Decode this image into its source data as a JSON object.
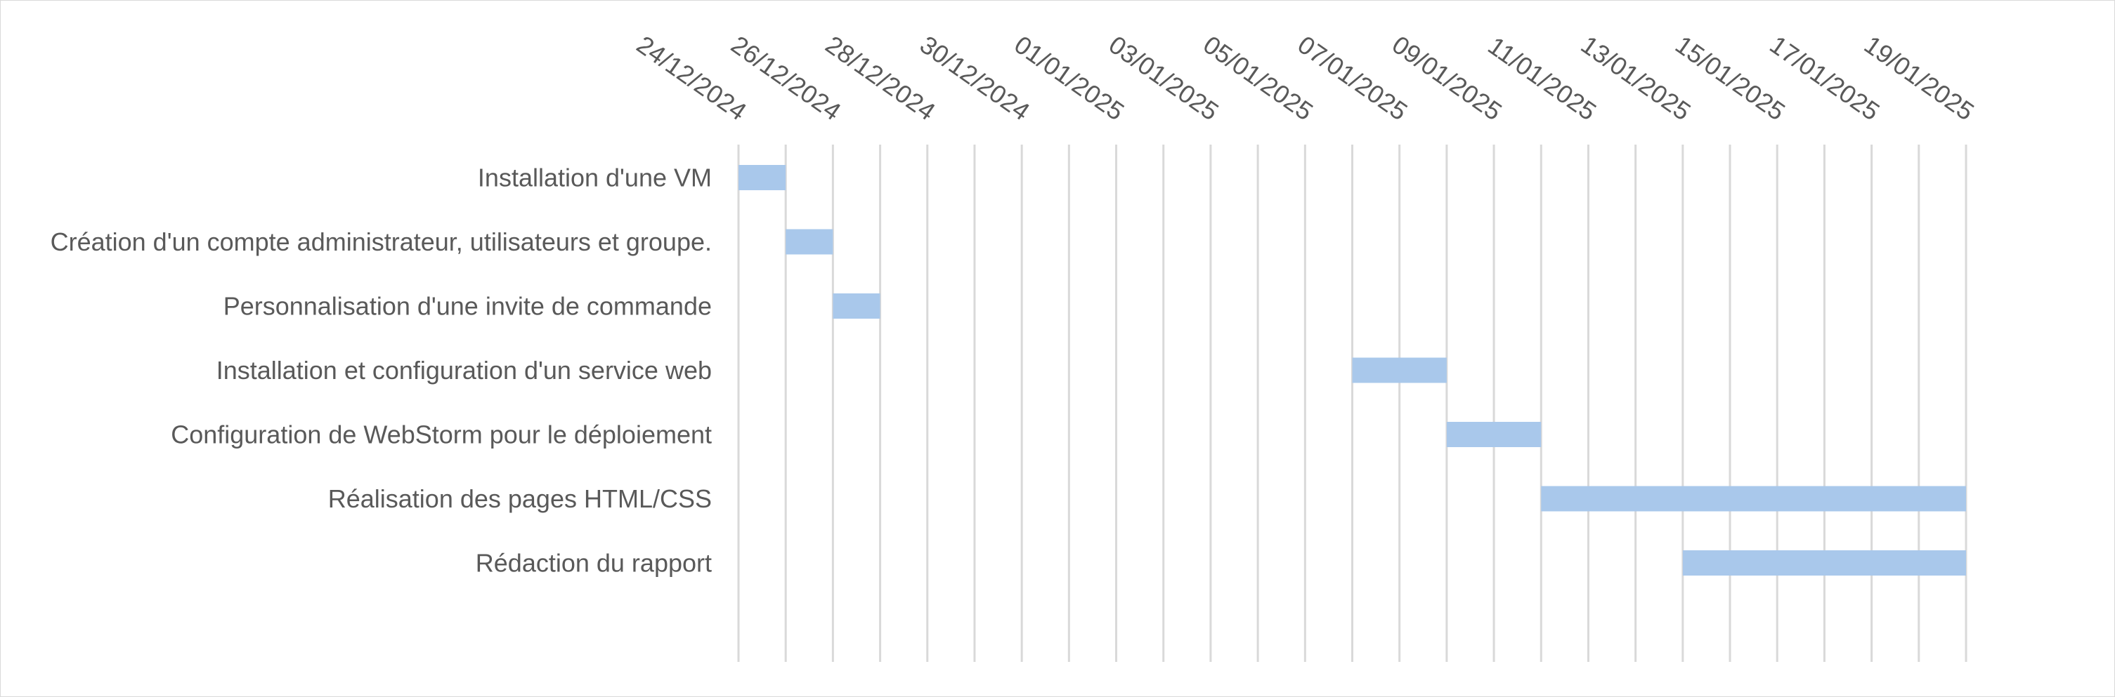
{
  "chart_data": {
    "type": "bar",
    "subtype": "gantt",
    "title": "",
    "xlabel": "",
    "ylabel": "",
    "x_axis_position": "top",
    "grid": true,
    "legend": "none",
    "bar_color": "#a9c8eb",
    "tick_labels": [
      "24/12/2024",
      "26/12/2024",
      "28/12/2024",
      "30/12/2024",
      "01/01/2025",
      "03/01/2025",
      "05/01/2025",
      "07/01/2025",
      "09/01/2025",
      "11/01/2025",
      "13/01/2025",
      "15/01/2025",
      "17/01/2025",
      "19/01/2025"
    ],
    "xlim": [
      "2024-12-24",
      "2025-01-19"
    ],
    "tasks": [
      {
        "name": "Installation d'une VM",
        "start": "2024-12-24",
        "end": "2024-12-25"
      },
      {
        "name": "Création d'un compte administrateur, utilisateurs et groupe.",
        "start": "2024-12-25",
        "end": "2024-12-26"
      },
      {
        "name": "Personnalisation d'une invite de commande",
        "start": "2024-12-26",
        "end": "2024-12-27"
      },
      {
        "name": "Installation et configuration d'un service web",
        "start": "2025-01-06",
        "end": "2025-01-08"
      },
      {
        "name": "Configuration de WebStorm pour le déploiement",
        "start": "2025-01-08",
        "end": "2025-01-10"
      },
      {
        "name": "Réalisation des pages HTML/CSS",
        "start": "2025-01-10",
        "end": "2025-01-19"
      },
      {
        "name": "Rédaction du rapport",
        "start": "2025-01-13",
        "end": "2025-01-19"
      }
    ]
  }
}
